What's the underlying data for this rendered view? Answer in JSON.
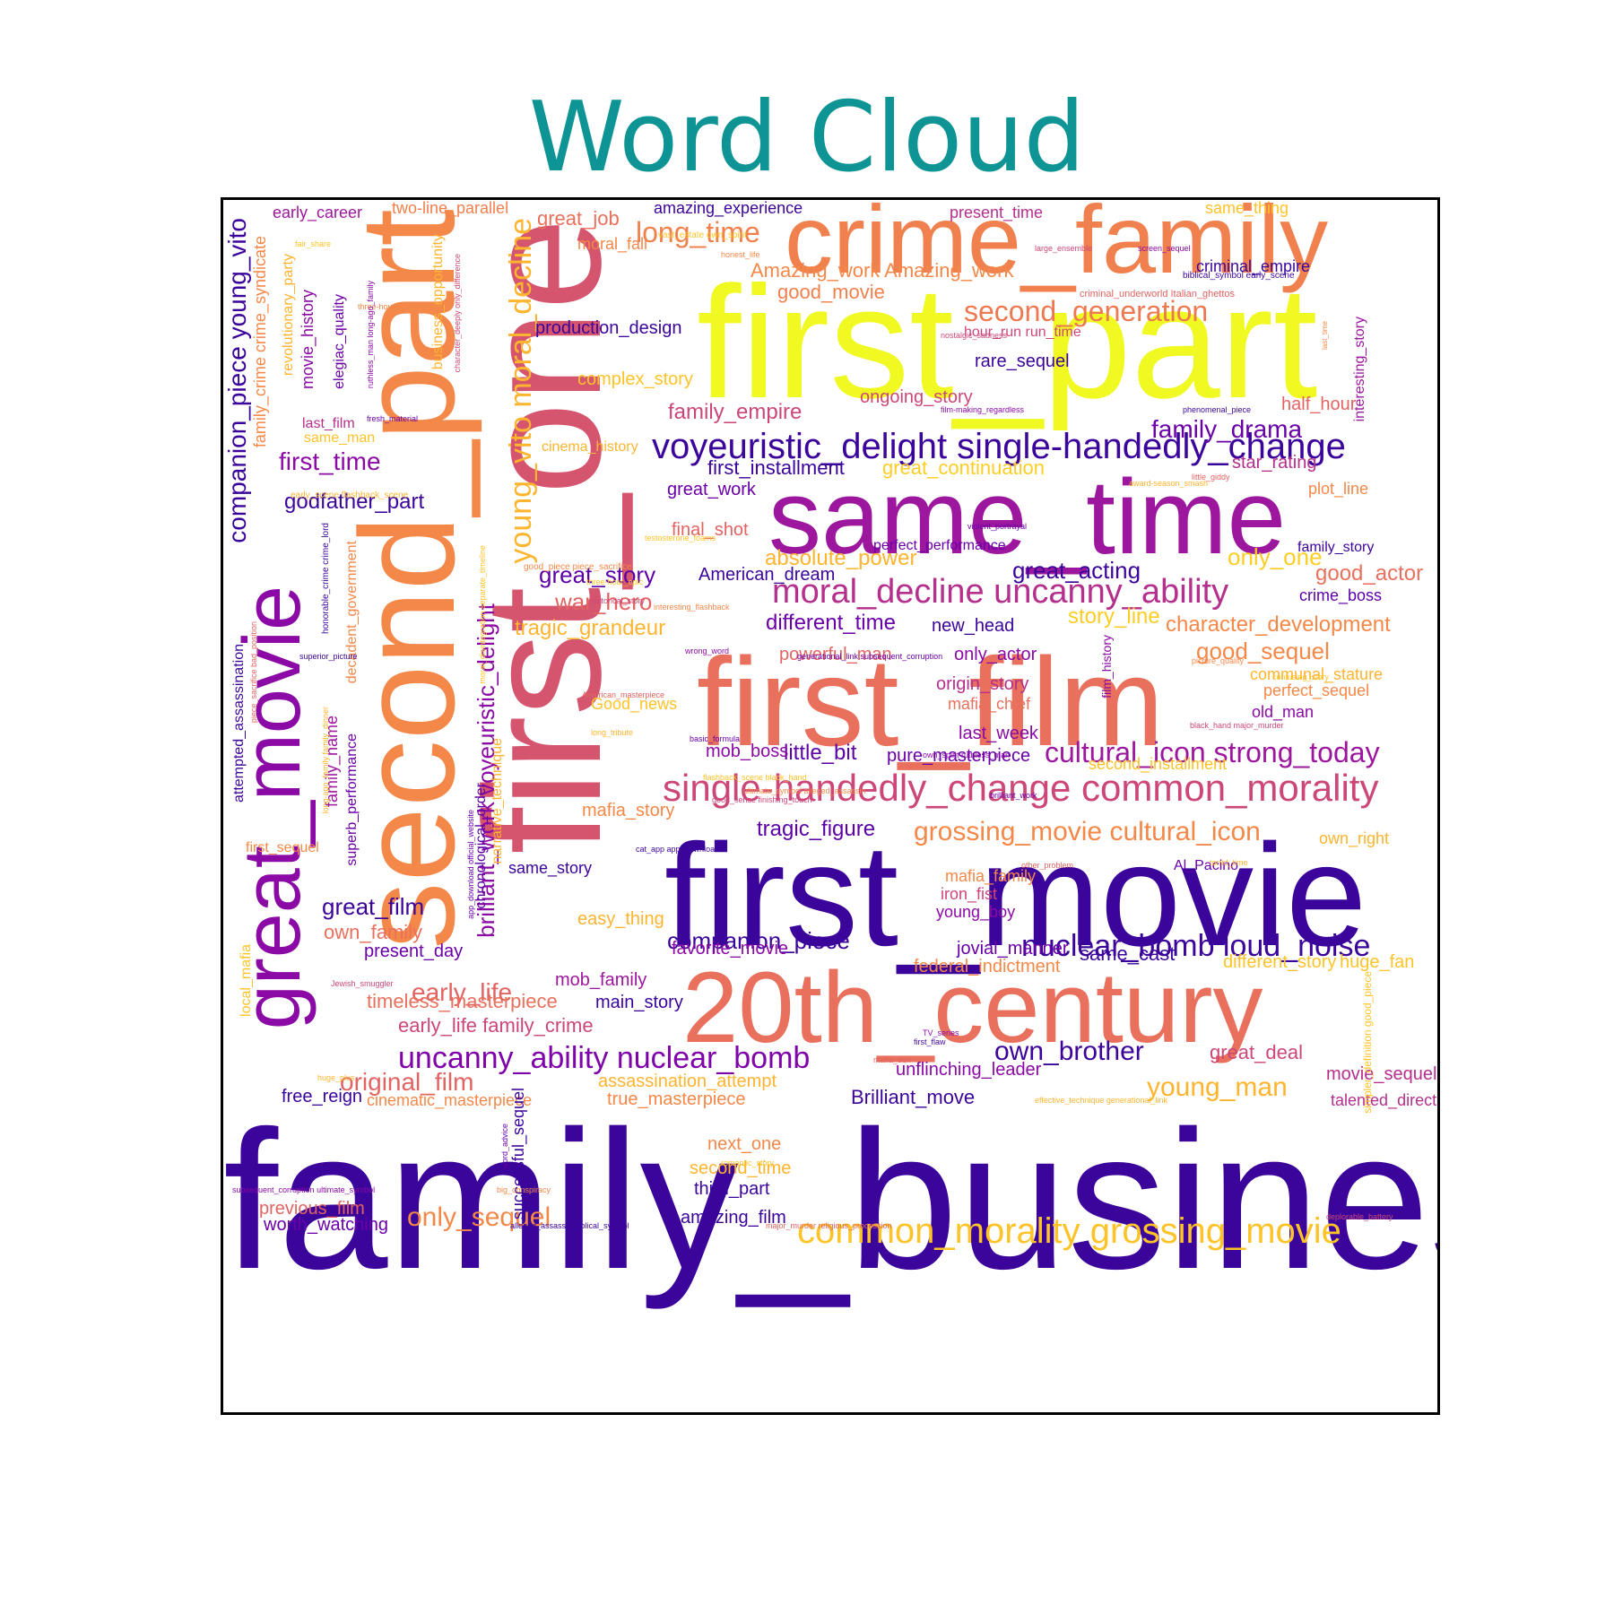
{
  "chart_data": {
    "type": "wordcloud",
    "title": "Word Cloud",
    "colormap": "plasma",
    "frame": "black square border",
    "words": [
      {
        "text": "family_business",
        "color": "#3b049a"
      },
      {
        "text": "first_movie",
        "color": "#3b049a"
      },
      {
        "text": "first_part",
        "color": "#f0f921"
      },
      {
        "text": "first_one",
        "color": "#d5546e"
      },
      {
        "text": "first_film",
        "color": "#e8705c"
      },
      {
        "text": "second_part",
        "color": "#f48849"
      },
      {
        "text": "crime_family",
        "color": "#f0804e"
      },
      {
        "text": "20th_century",
        "color": "#e8705c"
      },
      {
        "text": "same_time",
        "color": "#9c179e"
      },
      {
        "text": "great_movie",
        "color": "#8b0aa5"
      },
      {
        "text": "young_vito moral_decline",
        "color": "#fdb42f"
      },
      {
        "text": "voyeuristic_delight single-handedly_change",
        "color": "#3b049a"
      },
      {
        "text": "single-handedly_change common_morality",
        "color": "#cc4778"
      },
      {
        "text": "common_morality grossing_movie",
        "color": "#fdc328"
      },
      {
        "text": "moral_decline uncanny_ability",
        "color": "#b52f8c"
      },
      {
        "text": "uncanny_ability nuclear_bomb",
        "color": "#7e03a8"
      },
      {
        "text": "nuclear_bomb loud_noise",
        "color": "#3b049a"
      },
      {
        "text": "cultural_icon strong_today",
        "color": "#9c179e"
      },
      {
        "text": "grossing_movie cultural_icon",
        "color": "#f48849"
      },
      {
        "text": "companion_piece young_vito",
        "color": "#3b049a"
      },
      {
        "text": "brilliant_work voyeuristic_delight",
        "color": "#8b0aa5"
      },
      {
        "text": "second_generation",
        "color": "#ed7953"
      },
      {
        "text": "long_time",
        "color": "#f0804e"
      },
      {
        "text": "family_drama",
        "color": "#6a00a8"
      },
      {
        "text": "first_time",
        "color": "#8b0aa5"
      },
      {
        "text": "godfather_part",
        "color": "#3b049a"
      },
      {
        "text": "companion_piece",
        "color": "#3b049a"
      },
      {
        "text": "early_life",
        "color": "#e16462"
      },
      {
        "text": "young_man",
        "color": "#fdb42f"
      },
      {
        "text": "own_brother",
        "color": "#3b049a"
      },
      {
        "text": "original_film",
        "color": "#e16462"
      },
      {
        "text": "only_sequel",
        "color": "#f48849"
      },
      {
        "text": "great_story",
        "color": "#5c01a6"
      },
      {
        "text": "great_acting",
        "color": "#3b049a"
      },
      {
        "text": "great_film",
        "color": "#3b049a"
      },
      {
        "text": "war_hero",
        "color": "#e16462"
      },
      {
        "text": "tragic_grandeur",
        "color": "#fdb42f"
      },
      {
        "text": "tragic_figure",
        "color": "#5c01a6"
      },
      {
        "text": "only_one",
        "color": "#fcce25"
      },
      {
        "text": "absolute_power",
        "color": "#fdb42f"
      },
      {
        "text": "story_line",
        "color": "#fcce25"
      },
      {
        "text": "character_development",
        "color": "#f48849"
      },
      {
        "text": "good_sequel",
        "color": "#f48849"
      },
      {
        "text": "good_actor",
        "color": "#e8705c"
      },
      {
        "text": "different_time",
        "color": "#6a00a8"
      },
      {
        "text": "family_empire",
        "color": "#cc4778"
      },
      {
        "text": "production_design",
        "color": "#3b049a"
      },
      {
        "text": "complex_story",
        "color": "#fdc328"
      },
      {
        "text": "good_movie",
        "color": "#f0804e"
      },
      {
        "text": "great_job",
        "color": "#e8705c"
      },
      {
        "text": "Amazing_work Amazing_work",
        "color": "#f48849"
      },
      {
        "text": "early_life family_crime",
        "color": "#cc4778"
      },
      {
        "text": "timeless_masterpiece",
        "color": "#e8705c"
      },
      {
        "text": "main_story",
        "color": "#3b049a"
      },
      {
        "text": "mob_family",
        "color": "#9c179e"
      },
      {
        "text": "present_day",
        "color": "#6a00a8"
      },
      {
        "text": "own_family",
        "color": "#e8705c"
      },
      {
        "text": "easy_thing",
        "color": "#fdb42f"
      },
      {
        "text": "same_story",
        "color": "#3b049a"
      },
      {
        "text": "mafia_story",
        "color": "#f48849"
      },
      {
        "text": "favorite_movie",
        "color": "#8b0aa5"
      },
      {
        "text": "federal_indictment",
        "color": "#f48849"
      },
      {
        "text": "jovial_manner",
        "color": "#6a00a8"
      },
      {
        "text": "same_cast",
        "color": "#3b049a"
      },
      {
        "text": "different_story",
        "color": "#fdc328"
      },
      {
        "text": "huge_fan",
        "color": "#fdc328"
      },
      {
        "text": "great_deal",
        "color": "#cc4778"
      },
      {
        "text": "movie_sequel",
        "color": "#b52f8c"
      },
      {
        "text": "talented_director",
        "color": "#b52f8c"
      },
      {
        "text": "unflinching_leader",
        "color": "#8b0aa5"
      },
      {
        "text": "Brilliant_move",
        "color": "#3b049a"
      },
      {
        "text": "assassination_attempt",
        "color": "#fdb42f"
      },
      {
        "text": "true_masterpiece",
        "color": "#f48849"
      },
      {
        "text": "cinematic_masterpiece",
        "color": "#f48849"
      },
      {
        "text": "free_reign",
        "color": "#3b049a"
      },
      {
        "text": "next_one",
        "color": "#f48849"
      },
      {
        "text": "second_time",
        "color": "#fdb42f"
      },
      {
        "text": "third_part",
        "color": "#3b049a"
      },
      {
        "text": "amazing_film",
        "color": "#3b049a"
      },
      {
        "text": "previous_film",
        "color": "#e16462"
      },
      {
        "text": "worth_watching",
        "color": "#6a00a8"
      },
      {
        "text": "successful_sequel",
        "color": "#3b049a"
      },
      {
        "text": "little_bit",
        "color": "#5c01a6"
      },
      {
        "text": "mob_boss",
        "color": "#8b0aa5"
      },
      {
        "text": "pure_masterpiece",
        "color": "#6a00a8"
      },
      {
        "text": "last_week",
        "color": "#8b0aa5"
      },
      {
        "text": "origin_story",
        "color": "#b52f8c"
      },
      {
        "text": "mafia_chief",
        "color": "#e8705c"
      },
      {
        "text": "powerful_man",
        "color": "#e16462"
      },
      {
        "text": "only_actor",
        "color": "#8b0aa5"
      },
      {
        "text": "new_head",
        "color": "#3b049a"
      },
      {
        "text": "American_dream",
        "color": "#3b049a"
      },
      {
        "text": "final_shot",
        "color": "#e16462"
      },
      {
        "text": "great_work",
        "color": "#6a00a8"
      },
      {
        "text": "first_installment",
        "color": "#3b049a"
      },
      {
        "text": "great_continuation",
        "color": "#fcce25"
      },
      {
        "text": "star_rating",
        "color": "#b52f8c"
      },
      {
        "text": "plot_line",
        "color": "#f48849"
      },
      {
        "text": "half_hour",
        "color": "#e16462"
      },
      {
        "text": "ongoing_story",
        "color": "#cc4778"
      },
      {
        "text": "rare_sequel",
        "color": "#3b049a"
      },
      {
        "text": "hour_run run_time",
        "color": "#cc4778"
      },
      {
        "text": "criminal_empire",
        "color": "#3b049a"
      },
      {
        "text": "present_time",
        "color": "#b52f8c"
      },
      {
        "text": "same_thing",
        "color": "#fdc328"
      },
      {
        "text": "amazing_experience",
        "color": "#3b049a"
      },
      {
        "text": "two-line_parallel",
        "color": "#f0804e"
      },
      {
        "text": "early_career",
        "color": "#9c179e"
      },
      {
        "text": "moral_fall",
        "color": "#f48849"
      },
      {
        "text": "perfect_performance",
        "color": "#6a00a8"
      },
      {
        "text": "family_story",
        "color": "#3b049a"
      },
      {
        "text": "crime_boss",
        "color": "#5c01a6"
      },
      {
        "text": "communal_stature",
        "color": "#fdb42f"
      },
      {
        "text": "perfect_sequel",
        "color": "#f48849"
      },
      {
        "text": "old_man",
        "color": "#8b0aa5"
      },
      {
        "text": "own_right",
        "color": "#fdb42f"
      },
      {
        "text": "Al_Pacino",
        "color": "#6a00a8"
      },
      {
        "text": "second_installment",
        "color": "#fdc328"
      },
      {
        "text": "Good_news",
        "color": "#fdc328"
      },
      {
        "text": "mafia_family",
        "color": "#f48849"
      },
      {
        "text": "iron_fist",
        "color": "#cc4778"
      },
      {
        "text": "young_boy",
        "color": "#8b0aa5"
      },
      {
        "text": "first_sequel",
        "color": "#f48849"
      },
      {
        "text": "last_film",
        "color": "#b52f8c"
      },
      {
        "text": "same_man",
        "color": "#fdc328"
      },
      {
        "text": "cinema_history",
        "color": "#fdb42f"
      },
      {
        "text": "family_crime crime_syndicate",
        "color": "#f48849"
      },
      {
        "text": "revolutionary_party",
        "color": "#fdb42f"
      },
      {
        "text": "movie_history",
        "color": "#8b0aa5"
      },
      {
        "text": "elegiac_quality",
        "color": "#6a00a8"
      },
      {
        "text": "business_opportunity",
        "color": "#fdb42f"
      },
      {
        "text": "family_name",
        "color": "#9c179e"
      },
      {
        "text": "decadent_government",
        "color": "#f48849"
      },
      {
        "text": "superb_performance",
        "color": "#6a00a8"
      },
      {
        "text": "attempted_assassination",
        "color": "#3b049a"
      },
      {
        "text": "chronological_order",
        "color": "#5c01a6"
      },
      {
        "text": "narrative_technique",
        "color": "#fdb42f"
      },
      {
        "text": "local_mafia",
        "color": "#fdc328"
      },
      {
        "text": "film_history",
        "color": "#8b0aa5"
      },
      {
        "text": "interesting_story",
        "color": "#9c179e"
      },
      {
        "text": "simpler_definition good_piece",
        "color": "#fdc328"
      }
    ],
    "small_words": [
      "fair_share",
      "three-hour_mark",
      "nostalgic_sadness",
      "film-making_regardless",
      "phenomenal_piece",
      "little_giddy",
      "award-season_smash",
      "violent_portrayal",
      "testosterone_foams",
      "interesting_flashback",
      "historical_story",
      "wrong_word",
      "superior_picture",
      "American_masterpiece",
      "long_tribute",
      "basic_formula",
      "flashback_scene black_hand",
      "ultimate_symbol alleged_assassin",
      "good_sense finishing_touch",
      "own_spirit ruthless_man",
      "cat_app app_download",
      "other_problem",
      "torrid_time",
      "brilliant_work",
      "confusing_story",
      "picture_quality",
      "black_hand major_murder",
      "TV_series",
      "first_flaw",
      "mafia_don",
      "huge_plus",
      "word_advice",
      "romantic_story",
      "big_conspiracy",
      "Jewish_smuggler",
      "subsequent_corruption ultimate_symbol",
      "alleged_assassin biblical_symbol",
      "major_murder religious_procession",
      "effective_technique generational_link",
      "generational_link subsequent_corruption",
      "vast_estate own_spirit",
      "honest_life",
      "large_ensemble",
      "screen_sequel",
      "biblical_symbol early_scene",
      "criminal_underworld Italian_ghettos",
      "early_scene flashback_scene",
      "fresh_material",
      "three-hour_epic",
      "good_piece piece_sacrifice",
      "character_deeply only_difference",
      "ruthless_man long-ago_family",
      "honorable_crime crime_lord",
      "piece_sacrifice bad_position",
      "long-ago_family family_dinner",
      "app_download official_website",
      "moral_disintegration separate_timeline",
      "last_time",
      "deplorable_battery"
    ]
  }
}
